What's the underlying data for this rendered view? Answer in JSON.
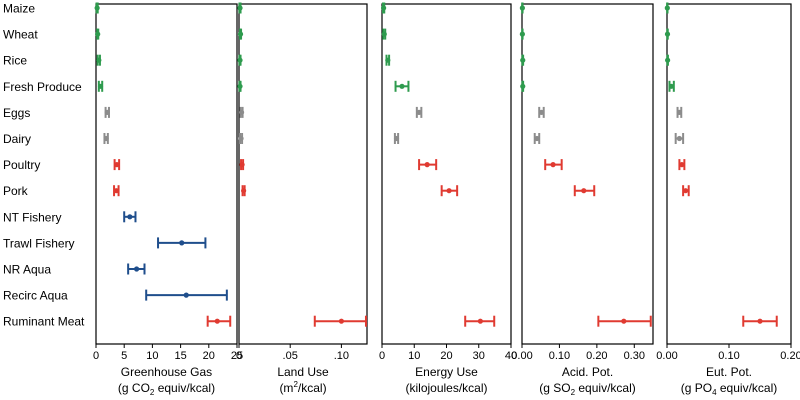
{
  "chart_data": {
    "type": "scatter",
    "style": "dot-with-horizontal-error-bars",
    "grid": false,
    "categories": [
      "Maize",
      "Wheat",
      "Rice",
      "Fresh Produce",
      "Eggs",
      "Dairy",
      "Poultry",
      "Pork",
      "NT Fishery",
      "Trawl Fishery",
      "NR Aqua",
      "Recirc Aqua",
      "Ruminant Meat"
    ],
    "colors": {
      "crops": "#2e9b4e",
      "animal": "#8c8c8c",
      "meat": "#e03a31",
      "seafood": "#1f4e8c"
    },
    "category_groups": [
      "crops",
      "crops",
      "crops",
      "crops",
      "animal",
      "animal",
      "meat",
      "meat",
      "seafood",
      "seafood",
      "seafood",
      "seafood",
      "meat"
    ],
    "panels": [
      {
        "title": "Greenhouse Gas",
        "unit_pre": "(g CO",
        "unit_sub": "2",
        "unit_post": " equiv/kcal)",
        "xlim": [
          0,
          25
        ],
        "ticks": [
          0,
          5,
          10,
          15,
          20,
          25
        ],
        "tick_labels": [
          "0",
          "5",
          "10",
          "15",
          "20",
          "25"
        ],
        "values": [
          {
            "mean": 0.2,
            "low": 0.1,
            "high": 0.3
          },
          {
            "mean": 0.3,
            "low": 0.2,
            "high": 0.4
          },
          {
            "mean": 0.5,
            "low": 0.3,
            "high": 0.7
          },
          {
            "mean": 0.8,
            "low": 0.5,
            "high": 1.1
          },
          {
            "mean": 2.0,
            "low": 1.7,
            "high": 2.3
          },
          {
            "mean": 1.8,
            "low": 1.5,
            "high": 2.1
          },
          {
            "mean": 3.7,
            "low": 3.3,
            "high": 4.1
          },
          {
            "mean": 3.6,
            "low": 3.2,
            "high": 4.0
          },
          {
            "mean": 6.0,
            "low": 5.0,
            "high": 7.0
          },
          {
            "mean": 15.2,
            "low": 11.0,
            "high": 19.4
          },
          {
            "mean": 7.2,
            "low": 5.7,
            "high": 8.6
          },
          {
            "mean": 16.0,
            "low": 8.9,
            "high": 23.2
          },
          {
            "mean": 21.5,
            "low": 19.8,
            "high": 23.8
          }
        ]
      },
      {
        "title": "Land Use",
        "unit_pre": "(m",
        "unit_sup": "2",
        "unit_post": "/kcal)",
        "xlim": [
          0,
          0.125
        ],
        "ticks": [
          0,
          0.05,
          0.1
        ],
        "tick_labels": [
          "0",
          ".05",
          ".10"
        ],
        "values": [
          {
            "mean": 0.001,
            "low": 0.0005,
            "high": 0.0015
          },
          {
            "mean": 0.0015,
            "low": 0.001,
            "high": 0.002
          },
          {
            "mean": 0.001,
            "low": 0.0005,
            "high": 0.0015
          },
          {
            "mean": 0.001,
            "low": 0.0005,
            "high": 0.0015
          },
          {
            "mean": 0.0025,
            "low": 0.0015,
            "high": 0.0035
          },
          {
            "mean": 0.002,
            "low": 0.001,
            "high": 0.003
          },
          {
            "mean": 0.003,
            "low": 0.002,
            "high": 0.004
          },
          {
            "mean": 0.0045,
            "low": 0.0035,
            "high": 0.0055
          },
          null,
          null,
          null,
          null,
          {
            "mean": 0.1,
            "low": 0.074,
            "high": 0.124
          }
        ]
      },
      {
        "title": "Energy Use",
        "unit_pre": "(kilojoules/kcal)",
        "xlim": [
          0,
          40
        ],
        "ticks": [
          0,
          10,
          20,
          30,
          40
        ],
        "tick_labels": [
          "0",
          "10",
          "20",
          "30",
          "40"
        ],
        "values": [
          {
            "mean": 0.5,
            "low": 0.3,
            "high": 0.7
          },
          {
            "mean": 0.7,
            "low": 0.4,
            "high": 1.0
          },
          {
            "mean": 1.8,
            "low": 1.4,
            "high": 2.2
          },
          {
            "mean": 6.2,
            "low": 4.2,
            "high": 8.2
          },
          {
            "mean": 11.5,
            "low": 10.8,
            "high": 12.2
          },
          {
            "mean": 4.5,
            "low": 4.0,
            "high": 5.0
          },
          {
            "mean": 14.0,
            "low": 11.5,
            "high": 16.8
          },
          {
            "mean": 20.8,
            "low": 18.5,
            "high": 23.3
          },
          null,
          null,
          null,
          null,
          {
            "mean": 30.5,
            "low": 25.8,
            "high": 34.8
          }
        ]
      },
      {
        "title": "Acid. Pot.",
        "unit_pre": "(g SO",
        "unit_sub": "2",
        "unit_post": " equiv/kcal)",
        "xlim": [
          0,
          0.35
        ],
        "ticks": [
          0,
          0.1,
          0.2,
          0.3
        ],
        "tick_labels": [
          "0.00",
          "0.10",
          "0.20",
          "0.30"
        ],
        "values": [
          {
            "mean": 0.001,
            "low": 0.0005,
            "high": 0.0015
          },
          {
            "mean": 0.001,
            "low": 0.0005,
            "high": 0.0015
          },
          {
            "mean": 0.002,
            "low": 0.001,
            "high": 0.003
          },
          {
            "mean": 0.002,
            "low": 0.001,
            "high": 0.003
          },
          {
            "mean": 0.052,
            "low": 0.046,
            "high": 0.058
          },
          {
            "mean": 0.04,
            "low": 0.034,
            "high": 0.046
          },
          {
            "mean": 0.083,
            "low": 0.062,
            "high": 0.106
          },
          {
            "mean": 0.165,
            "low": 0.141,
            "high": 0.193
          },
          null,
          null,
          null,
          null,
          {
            "mean": 0.272,
            "low": 0.204,
            "high": 0.344
          }
        ]
      },
      {
        "title": "Eut. Pot.",
        "unit_pre": "(g PO",
        "unit_sub": "4",
        "unit_post": " equiv/kcal)",
        "xlim": [
          0,
          0.2
        ],
        "ticks": [
          0,
          0.1,
          0.2
        ],
        "tick_labels": [
          "0.00",
          "0.10",
          "0.20"
        ],
        "values": [
          {
            "mean": 0.0005,
            "low": 0.0002,
            "high": 0.0008
          },
          {
            "mean": 0.0008,
            "low": 0.0004,
            "high": 0.0012
          },
          {
            "mean": 0.001,
            "low": 0.0005,
            "high": 0.0015
          },
          {
            "mean": 0.007,
            "low": 0.004,
            "high": 0.011
          },
          {
            "mean": 0.02,
            "low": 0.017,
            "high": 0.023
          },
          {
            "mean": 0.02,
            "low": 0.014,
            "high": 0.026
          },
          {
            "mean": 0.024,
            "low": 0.02,
            "high": 0.028
          },
          {
            "mean": 0.03,
            "low": 0.026,
            "high": 0.035
          },
          null,
          null,
          null,
          null,
          {
            "mean": 0.15,
            "low": 0.123,
            "high": 0.177
          }
        ]
      }
    ]
  }
}
